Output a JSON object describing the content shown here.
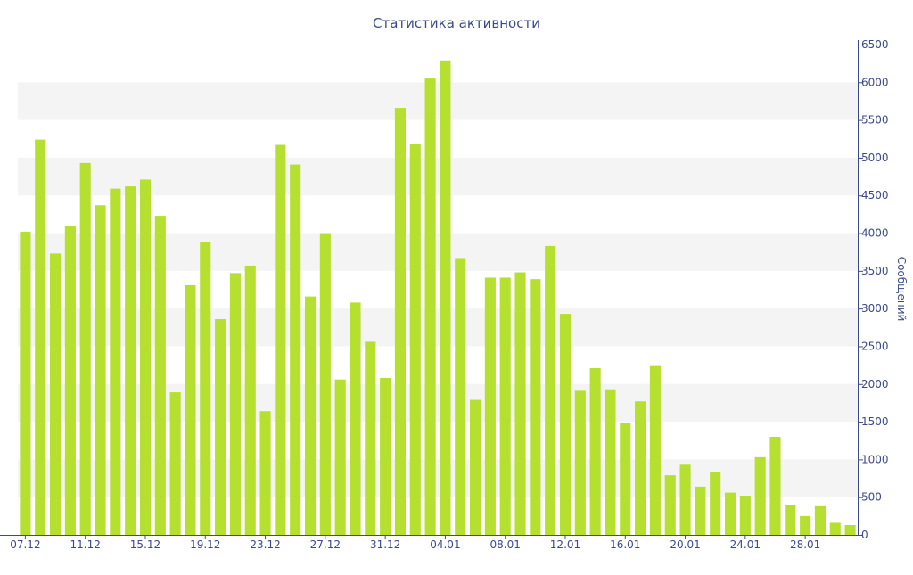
{
  "chart_data": {
    "type": "bar",
    "title": "Статистика активности",
    "ylabel": "Сообщений",
    "xlabel": "",
    "ylim": [
      0,
      6500
    ],
    "y_ticks": [
      0,
      500,
      1000,
      1500,
      2000,
      2500,
      3000,
      3500,
      4000,
      4500,
      5000,
      5500,
      6000,
      6500
    ],
    "y_axis_side": "right",
    "x_tick_labels": [
      "07.12",
      "11.12",
      "15.12",
      "19.12",
      "23.12",
      "27.12",
      "31.12",
      "04.01",
      "08.01",
      "12.01",
      "16.01",
      "20.01",
      "24.01",
      "28.01"
    ],
    "x_tick_every": 4,
    "bar_color": "#b5e030",
    "band_color": "#f4f4f4",
    "axis_color": "#3a4a8c",
    "grid": "alternating horizontal bands",
    "categories": [
      "07.12",
      "08.12",
      "09.12",
      "10.12",
      "11.12",
      "12.12",
      "13.12",
      "14.12",
      "15.12",
      "16.12",
      "17.12",
      "18.12",
      "19.12",
      "20.12",
      "21.12",
      "22.12",
      "23.12",
      "24.12",
      "25.12",
      "26.12",
      "27.12",
      "28.12",
      "29.12",
      "30.12",
      "31.12",
      "01.01",
      "02.01",
      "03.01",
      "04.01",
      "05.01",
      "06.01",
      "07.01",
      "08.01",
      "09.01",
      "10.01",
      "11.01",
      "12.01",
      "13.01",
      "14.01",
      "15.01",
      "16.01",
      "17.01",
      "18.01",
      "19.01",
      "20.01",
      "21.01",
      "22.01",
      "23.01",
      "24.01",
      "25.01",
      "26.01",
      "27.01",
      "28.01",
      "29.01",
      "30.01",
      "31.01"
    ],
    "values": [
      4020,
      5240,
      3730,
      4090,
      4930,
      4370,
      4590,
      4620,
      4710,
      4230,
      1890,
      3310,
      3880,
      2860,
      3470,
      3570,
      1640,
      5170,
      4910,
      3160,
      4000,
      2060,
      3080,
      2560,
      2080,
      5660,
      5180,
      6050,
      6290,
      3670,
      1790,
      3410,
      3410,
      3480,
      3390,
      3830,
      2930,
      1910,
      2210,
      1930,
      1490,
      1770,
      2250,
      790,
      930,
      640,
      830,
      560,
      520,
      1030,
      1300,
      400,
      250,
      380,
      160,
      130
    ]
  }
}
